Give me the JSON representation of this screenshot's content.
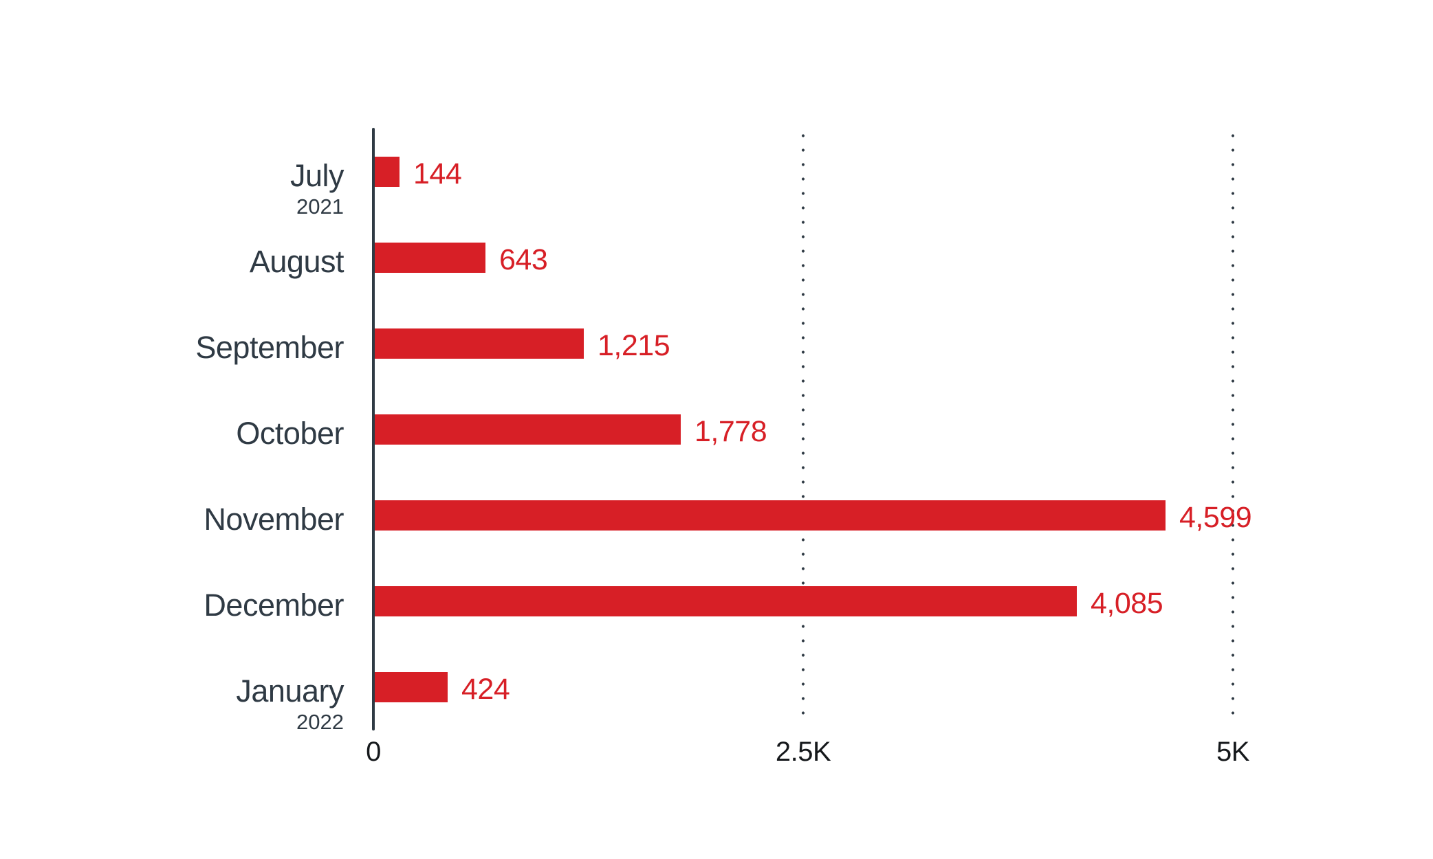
{
  "chart_data": {
    "type": "bar",
    "orientation": "horizontal",
    "title": "",
    "xlabel": "",
    "ylabel": "",
    "xlim": [
      0,
      5000
    ],
    "grid": "dotted vertical gridlines at 2.5K and 5K, drawn behind bars",
    "legend_position": "none",
    "categories": [
      "July",
      "August",
      "September",
      "October",
      "November",
      "December",
      "January"
    ],
    "values": [
      144,
      643,
      1215,
      1778,
      4599,
      4085,
      424
    ],
    "rows": [
      {
        "month": "July",
        "year": "2021",
        "value": 144,
        "value_label": "144"
      },
      {
        "month": "August",
        "year": "",
        "value": 643,
        "value_label": "643"
      },
      {
        "month": "September",
        "year": "",
        "value": 1215,
        "value_label": "1,215"
      },
      {
        "month": "October",
        "year": "",
        "value": 1778,
        "value_label": "1,778"
      },
      {
        "month": "November",
        "year": "",
        "value": 4599,
        "value_label": "4,599"
      },
      {
        "month": "December",
        "year": "",
        "value": 4085,
        "value_label": "4,085"
      },
      {
        "month": "January",
        "year": "2022",
        "value": 424,
        "value_label": "424"
      }
    ],
    "x_ticks": [
      {
        "value": 0,
        "label": "0"
      },
      {
        "value": 2500,
        "label": "2.5K"
      },
      {
        "value": 5000,
        "label": "5K"
      }
    ],
    "colors": {
      "bar": "#d71f26",
      "value_label": "#d71f26",
      "category_label": "#2f3a44",
      "year_label": "#2f3a44",
      "axis_line": "#2f3a44",
      "grid_dot": "#2f3a44",
      "tick_label": "#15181b",
      "background": "#ffffff"
    }
  }
}
